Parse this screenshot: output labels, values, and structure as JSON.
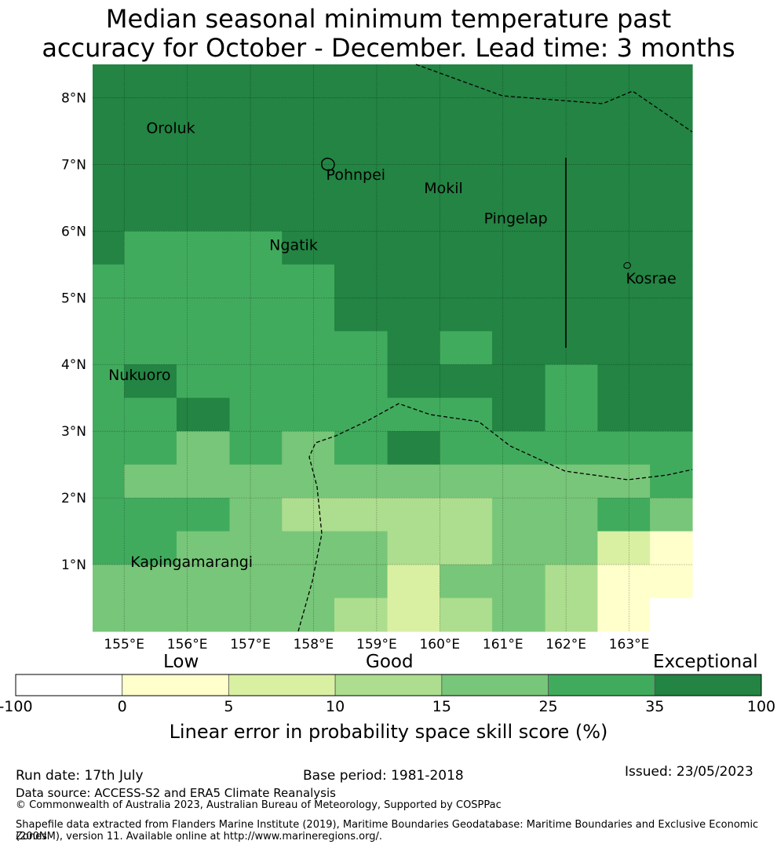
{
  "title_line1": "Median seasonal minimum temperature past",
  "title_line2": "accuracy for October - December. Lead time: 3 months",
  "map": {
    "lon_range": [
      154.5,
      164.0
    ],
    "lat_range": [
      0.0,
      8.5
    ],
    "lon_ticks": [
      {
        "value": 155,
        "label": "155°E"
      },
      {
        "value": 156,
        "label": "156°E"
      },
      {
        "value": 157,
        "label": "157°E"
      },
      {
        "value": 158,
        "label": "158°E"
      },
      {
        "value": 159,
        "label": "159°E"
      },
      {
        "value": 160,
        "label": "160°E"
      },
      {
        "value": 161,
        "label": "161°E"
      },
      {
        "value": 162,
        "label": "162°E"
      },
      {
        "value": 163,
        "label": "163°E"
      }
    ],
    "lat_ticks": [
      {
        "value": 1,
        "label": "1°N"
      },
      {
        "value": 2,
        "label": "2°N"
      },
      {
        "value": 3,
        "label": "3°N"
      },
      {
        "value": 4,
        "label": "4°N"
      },
      {
        "value": 5,
        "label": "5°N"
      },
      {
        "value": 6,
        "label": "6°N"
      },
      {
        "value": 7,
        "label": "7°N"
      },
      {
        "value": 8,
        "label": "8°N"
      }
    ],
    "places": [
      {
        "name": "Oroluk",
        "lon": 155.35,
        "lat": 7.55
      },
      {
        "name": "Pohnpei",
        "lon": 158.2,
        "lat": 6.85
      },
      {
        "name": "Mokil",
        "lon": 159.75,
        "lat": 6.65
      },
      {
        "name": "Pingelap",
        "lon": 160.7,
        "lat": 6.2
      },
      {
        "name": "Ngatik",
        "lon": 157.3,
        "lat": 5.8
      },
      {
        "name": "Kosrae",
        "lon": 162.95,
        "lat": 5.3
      },
      {
        "name": "Nukuoro",
        "lon": 154.75,
        "lat": 3.85
      },
      {
        "name": "Kapingamarangi",
        "lon": 155.1,
        "lat": 1.05
      }
    ]
  },
  "skill_grid": {
    "cols_lon_edges": [
      154.5,
      155.0,
      155.83,
      156.67,
      157.5,
      158.33,
      159.17,
      160.0,
      160.83,
      161.67,
      162.5,
      163.33,
      164.0
    ],
    "rows_lat_edges": [
      8.5,
      6.0,
      5.5,
      5.0,
      4.5,
      4.0,
      3.5,
      3.0,
      2.5,
      2.0,
      1.5,
      1.0,
      0.5,
      0.0
    ],
    "rows": [
      [
        6,
        6,
        6,
        6,
        6,
        6,
        6,
        6,
        6,
        6,
        6,
        6
      ],
      [
        6,
        5,
        5,
        5,
        6,
        6,
        6,
        6,
        6,
        6,
        6,
        6
      ],
      [
        5,
        5,
        5,
        5,
        5,
        6,
        6,
        6,
        6,
        6,
        6,
        6
      ],
      [
        5,
        5,
        5,
        5,
        5,
        6,
        6,
        6,
        6,
        6,
        6,
        6
      ],
      [
        5,
        5,
        5,
        5,
        5,
        5,
        6,
        5,
        6,
        6,
        6,
        6
      ],
      [
        5,
        6,
        5,
        5,
        5,
        5,
        6,
        6,
        6,
        5,
        6,
        6
      ],
      [
        5,
        5,
        6,
        5,
        5,
        5,
        5,
        5,
        6,
        5,
        6,
        6
      ],
      [
        5,
        5,
        4,
        5,
        4,
        5,
        6,
        5,
        5,
        5,
        5,
        5
      ],
      [
        5,
        4,
        4,
        4,
        4,
        4,
        4,
        4,
        4,
        4,
        4,
        5
      ],
      [
        5,
        5,
        5,
        4,
        3,
        3,
        3,
        3,
        4,
        4,
        5,
        4
      ],
      [
        5,
        5,
        4,
        4,
        4,
        4,
        3,
        3,
        4,
        4,
        2,
        1
      ],
      [
        4,
        4,
        4,
        4,
        4,
        4,
        2,
        4,
        4,
        3,
        1,
        1
      ],
      [
        4,
        4,
        4,
        4,
        4,
        3,
        2,
        3,
        4,
        3,
        1,
        0
      ],
      [
        4,
        4,
        4,
        4,
        4,
        3,
        3,
        3,
        4,
        2,
        1,
        0
      ]
    ],
    "mask_note_rows": "0 = no data (white)"
  },
  "colorbar": {
    "categories": [
      {
        "label": "Low"
      },
      {
        "label": "Good"
      },
      {
        "label": "Exceptional"
      }
    ],
    "bins": [
      {
        "from": -100,
        "to": 0,
        "color": "#ffffff"
      },
      {
        "from": 0,
        "to": 5,
        "color": "#ffffcc"
      },
      {
        "from": 5,
        "to": 10,
        "color": "#d9f0a3"
      },
      {
        "from": 10,
        "to": 15,
        "color": "#addd8e"
      },
      {
        "from": 15,
        "to": 25,
        "color": "#78c679"
      },
      {
        "from": 25,
        "to": 35,
        "color": "#41ab5d"
      },
      {
        "from": 35,
        "to": 100,
        "color": "#238443"
      }
    ],
    "tick_labels": [
      "-100",
      "0",
      "5",
      "10",
      "15",
      "25",
      "35",
      "100"
    ],
    "title": "Linear error in probability space skill score (%)"
  },
  "footer": {
    "run_date": "Run date: 17th July",
    "base_period": "Base period: 1981-2018",
    "issued": "Issued: 23/05/2023",
    "data_source": "Data source: ACCESS-S2 and ERA5 Climate Reanalysis",
    "copyright": "© Commonwealth of Australia 2023, Australian Bureau of Meteorology, Supported by COSPPac",
    "shapefile_line1": "Shapefile data extracted from Flanders Marine Institute (2019), Maritime Boundaries Geodatabase: Maritime Boundaries and Exclusive Economic Zones",
    "shapefile_line2": "(200NM), version 11. Available online at http://www.marineregions.org/."
  }
}
